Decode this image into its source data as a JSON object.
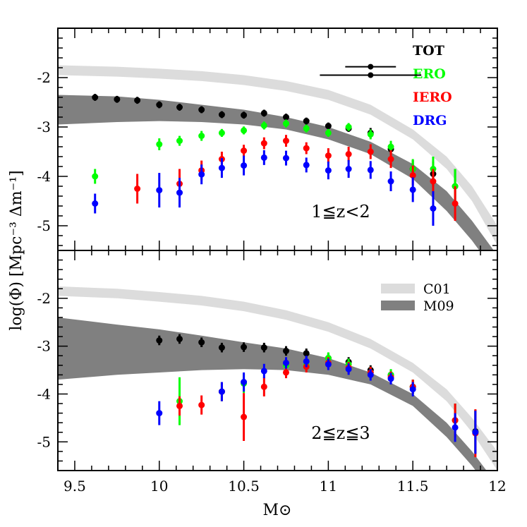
{
  "chart_data": [
    {
      "type": "scatter",
      "panel": "top",
      "xlabel": "M⊙",
      "ylabel": "log(Φ) [Mpc⁻³ Δm⁻¹]",
      "xlim": [
        9.4,
        12
      ],
      "ylim": [
        -5.5,
        -1
      ],
      "x_ticks": [
        "9.5",
        "10",
        "10.5",
        "11",
        "11.5",
        "12"
      ],
      "y_ticks": [
        "-2",
        "-3",
        "-4",
        "-5"
      ],
      "annotation": "1≦z<2",
      "legend": {
        "placement": "top-right",
        "entries": [
          {
            "label": "TOT",
            "color": "#000000"
          },
          {
            "label": "ERO",
            "color": "#00ff00"
          },
          {
            "label": "IERO",
            "color": "#ff0000"
          },
          {
            "label": "DRG",
            "color": "#0000ff"
          }
        ]
      },
      "error_bar_examples": [
        {
          "x": 11.25,
          "y": -1.78,
          "xerr": 0.15
        },
        {
          "x": 11.25,
          "y": -1.95,
          "xerr": 0.3
        }
      ],
      "bands": [
        {
          "name": "C01",
          "color": "#dcdcdc",
          "x": [
            9.4,
            9.75,
            10,
            10.25,
            10.5,
            10.75,
            11,
            11.25,
            11.5,
            11.7,
            11.85,
            12
          ],
          "upper": [
            -1.75,
            -1.78,
            -1.82,
            -1.87,
            -1.95,
            -2.07,
            -2.25,
            -2.55,
            -3.05,
            -3.6,
            -4.2,
            -5.0
          ],
          "lower": [
            -1.95,
            -1.98,
            -2.02,
            -2.07,
            -2.15,
            -2.27,
            -2.45,
            -2.75,
            -3.25,
            -3.85,
            -4.5,
            -5.4
          ]
        },
        {
          "name": "M09",
          "color": "#808080",
          "x": [
            9.4,
            9.75,
            10,
            10.25,
            10.5,
            10.75,
            11,
            11.25,
            11.5,
            11.7,
            11.85,
            12
          ],
          "upper": [
            -2.35,
            -2.38,
            -2.45,
            -2.55,
            -2.65,
            -2.8,
            -3.0,
            -3.3,
            -3.75,
            -4.3,
            -4.9,
            -5.6
          ],
          "lower": [
            -2.95,
            -2.9,
            -2.88,
            -2.9,
            -2.95,
            -3.05,
            -3.25,
            -3.55,
            -4.05,
            -4.7,
            -5.3,
            -6.0
          ]
        }
      ],
      "series": [
        {
          "name": "TOT",
          "color": "#000000",
          "points": [
            {
              "x": 9.62,
              "y": -2.4,
              "yerr": 0.07
            },
            {
              "x": 9.75,
              "y": -2.44,
              "yerr": 0.07
            },
            {
              "x": 9.87,
              "y": -2.46,
              "yerr": 0.07
            },
            {
              "x": 10.0,
              "y": -2.55,
              "yerr": 0.07
            },
            {
              "x": 10.12,
              "y": -2.6,
              "yerr": 0.07
            },
            {
              "x": 10.25,
              "y": -2.65,
              "yerr": 0.07
            },
            {
              "x": 10.37,
              "y": -2.75,
              "yerr": 0.07
            },
            {
              "x": 10.5,
              "y": -2.76,
              "yerr": 0.07
            },
            {
              "x": 10.62,
              "y": -2.72,
              "yerr": 0.07
            },
            {
              "x": 10.75,
              "y": -2.8,
              "yerr": 0.07
            },
            {
              "x": 10.87,
              "y": -2.88,
              "yerr": 0.07
            },
            {
              "x": 11.0,
              "y": -2.98,
              "yerr": 0.07
            },
            {
              "x": 11.12,
              "y": -3.03,
              "yerr": 0.07
            },
            {
              "x": 11.25,
              "y": -3.12,
              "yerr": 0.1
            },
            {
              "x": 11.37,
              "y": -3.45,
              "yerr": 0.12
            },
            {
              "x": 11.5,
              "y": -3.85,
              "yerr": 0.18
            },
            {
              "x": 11.62,
              "y": -3.95,
              "yerr": 0.25
            },
            {
              "x": 11.75,
              "y": -4.2,
              "yerr": 0.35
            }
          ]
        },
        {
          "name": "ERO",
          "color": "#00ff00",
          "points": [
            {
              "x": 9.62,
              "y": -4.0,
              "yerr": 0.15
            },
            {
              "x": 10.0,
              "y": -3.35,
              "yerr": 0.12
            },
            {
              "x": 10.12,
              "y": -3.28,
              "yerr": 0.1
            },
            {
              "x": 10.25,
              "y": -3.18,
              "yerr": 0.1
            },
            {
              "x": 10.37,
              "y": -3.12,
              "yerr": 0.08
            },
            {
              "x": 10.5,
              "y": -3.07,
              "yerr": 0.08
            },
            {
              "x": 10.62,
              "y": -2.97,
              "yerr": 0.08
            },
            {
              "x": 10.75,
              "y": -2.93,
              "yerr": 0.08
            },
            {
              "x": 10.87,
              "y": -3.03,
              "yerr": 0.08
            },
            {
              "x": 11.0,
              "y": -3.12,
              "yerr": 0.08
            },
            {
              "x": 11.12,
              "y": -3.0,
              "yerr": 0.08
            },
            {
              "x": 11.25,
              "y": -3.15,
              "yerr": 0.1
            },
            {
              "x": 11.37,
              "y": -3.4,
              "yerr": 0.12
            },
            {
              "x": 11.5,
              "y": -3.85,
              "yerr": 0.2
            },
            {
              "x": 11.62,
              "y": -3.85,
              "yerr": 0.25
            },
            {
              "x": 11.75,
              "y": -4.2,
              "yerr": 0.35
            }
          ]
        },
        {
          "name": "IERO",
          "color": "#ff0000",
          "points": [
            {
              "x": 9.87,
              "y": -4.25,
              "yerr": 0.3
            },
            {
              "x": 10.12,
              "y": -4.15,
              "yerr": 0.3
            },
            {
              "x": 10.25,
              "y": -3.88,
              "yerr": 0.2
            },
            {
              "x": 10.37,
              "y": -3.65,
              "yerr": 0.15
            },
            {
              "x": 10.5,
              "y": -3.48,
              "yerr": 0.12
            },
            {
              "x": 10.62,
              "y": -3.33,
              "yerr": 0.12
            },
            {
              "x": 10.75,
              "y": -3.28,
              "yerr": 0.12
            },
            {
              "x": 10.87,
              "y": -3.43,
              "yerr": 0.12
            },
            {
              "x": 11.0,
              "y": -3.58,
              "yerr": 0.15
            },
            {
              "x": 11.12,
              "y": -3.55,
              "yerr": 0.15
            },
            {
              "x": 11.25,
              "y": -3.5,
              "yerr": 0.15
            },
            {
              "x": 11.37,
              "y": -3.65,
              "yerr": 0.18
            },
            {
              "x": 11.5,
              "y": -3.98,
              "yerr": 0.2
            },
            {
              "x": 11.62,
              "y": -4.1,
              "yerr": 0.25
            },
            {
              "x": 11.75,
              "y": -4.55,
              "yerr": 0.35
            }
          ]
        },
        {
          "name": "DRG",
          "color": "#0000ff",
          "points": [
            {
              "x": 9.62,
              "y": -4.55,
              "yerr": 0.2
            },
            {
              "x": 10.0,
              "y": -4.28,
              "yerr": 0.35
            },
            {
              "x": 10.12,
              "y": -4.33,
              "yerr": 0.3
            },
            {
              "x": 10.25,
              "y": -3.96,
              "yerr": 0.2
            },
            {
              "x": 10.37,
              "y": -3.83,
              "yerr": 0.2
            },
            {
              "x": 10.5,
              "y": -3.78,
              "yerr": 0.2
            },
            {
              "x": 10.62,
              "y": -3.62,
              "yerr": 0.15
            },
            {
              "x": 10.75,
              "y": -3.63,
              "yerr": 0.15
            },
            {
              "x": 10.87,
              "y": -3.77,
              "yerr": 0.15
            },
            {
              "x": 11.0,
              "y": -3.88,
              "yerr": 0.18
            },
            {
              "x": 11.12,
              "y": -3.85,
              "yerr": 0.18
            },
            {
              "x": 11.25,
              "y": -3.87,
              "yerr": 0.18
            },
            {
              "x": 11.37,
              "y": -4.1,
              "yerr": 0.2
            },
            {
              "x": 11.5,
              "y": -4.27,
              "yerr": 0.25
            },
            {
              "x": 11.62,
              "y": -4.65,
              "yerr": 0.35
            }
          ]
        }
      ]
    },
    {
      "type": "scatter",
      "panel": "bottom",
      "xlabel": "M⊙",
      "ylabel": "log(Φ) [Mpc⁻³ Δm⁻¹]",
      "xlim": [
        9.4,
        12
      ],
      "ylim": [
        -5.6,
        -1
      ],
      "x_ticks": [
        "9.5",
        "10",
        "10.5",
        "11",
        "11.5",
        "12"
      ],
      "y_ticks": [
        "-2",
        "-3",
        "-4",
        "-5"
      ],
      "annotation": "2≦z≦3",
      "legend": {
        "placement": "top-right",
        "entries": [
          {
            "label": "C01",
            "color": "#dcdcdc"
          },
          {
            "label": "M09",
            "color": "#808080"
          }
        ]
      },
      "bands": [
        {
          "name": "C01",
          "color": "#dcdcdc",
          "x": [
            9.4,
            9.75,
            10,
            10.25,
            10.5,
            10.75,
            11,
            11.25,
            11.5,
            11.7,
            11.85,
            12
          ],
          "upper": [
            -1.75,
            -1.8,
            -1.87,
            -1.95,
            -2.07,
            -2.25,
            -2.5,
            -2.85,
            -3.35,
            -3.9,
            -4.5,
            -5.2
          ],
          "lower": [
            -1.95,
            -2.0,
            -2.07,
            -2.15,
            -2.27,
            -2.45,
            -2.7,
            -3.05,
            -3.55,
            -4.15,
            -4.8,
            -5.6
          ]
        },
        {
          "name": "M09",
          "color": "#808080",
          "x": [
            9.4,
            9.75,
            10,
            10.25,
            10.5,
            10.75,
            11,
            11.25,
            11.5,
            11.7,
            11.85,
            12
          ],
          "upper": [
            -2.4,
            -2.55,
            -2.65,
            -2.78,
            -2.92,
            -3.05,
            -3.25,
            -3.55,
            -4.0,
            -4.6,
            -5.2,
            -5.9
          ],
          "lower": [
            -3.7,
            -3.6,
            -3.55,
            -3.5,
            -3.48,
            -3.5,
            -3.6,
            -3.8,
            -4.25,
            -4.9,
            -5.5,
            -6.2
          ]
        }
      ],
      "series": [
        {
          "name": "TOT",
          "color": "#000000",
          "points": [
            {
              "x": 10.0,
              "y": -2.88,
              "yerr": 0.1
            },
            {
              "x": 10.12,
              "y": -2.85,
              "yerr": 0.1
            },
            {
              "x": 10.25,
              "y": -2.92,
              "yerr": 0.1
            },
            {
              "x": 10.37,
              "y": -3.03,
              "yerr": 0.1
            },
            {
              "x": 10.5,
              "y": -3.02,
              "yerr": 0.1
            },
            {
              "x": 10.62,
              "y": -3.03,
              "yerr": 0.1
            },
            {
              "x": 10.75,
              "y": -3.1,
              "yerr": 0.1
            },
            {
              "x": 10.87,
              "y": -3.15,
              "yerr": 0.1
            },
            {
              "x": 11.0,
              "y": -3.25,
              "yerr": 0.1
            },
            {
              "x": 11.12,
              "y": -3.33,
              "yerr": 0.1
            },
            {
              "x": 11.25,
              "y": -3.5,
              "yerr": 0.1
            },
            {
              "x": 11.37,
              "y": -3.6,
              "yerr": 0.1
            },
            {
              "x": 11.5,
              "y": -3.85,
              "yerr": 0.15
            },
            {
              "x": 11.75,
              "y": -4.55,
              "yerr": 0.35
            },
            {
              "x": 11.87,
              "y": -4.78,
              "yerr": 0.45
            }
          ]
        },
        {
          "name": "ERO",
          "color": "#00ff00",
          "points": [
            {
              "x": 10.12,
              "y": -4.15,
              "yerr": 0.5
            },
            {
              "x": 10.37,
              "y": -3.95,
              "yerr": 0.2
            },
            {
              "x": 10.5,
              "y": -3.78,
              "yerr": 0.2
            },
            {
              "x": 10.75,
              "y": -3.4,
              "yerr": 0.15
            },
            {
              "x": 10.87,
              "y": -3.4,
              "yerr": 0.12
            },
            {
              "x": 11.0,
              "y": -3.25,
              "yerr": 0.12
            },
            {
              "x": 11.12,
              "y": -3.38,
              "yerr": 0.12
            },
            {
              "x": 11.25,
              "y": -3.55,
              "yerr": 0.12
            },
            {
              "x": 11.37,
              "y": -3.6,
              "yerr": 0.12
            },
            {
              "x": 11.5,
              "y": -3.85,
              "yerr": 0.15
            },
            {
              "x": 11.75,
              "y": -4.55,
              "yerr": 0.35
            },
            {
              "x": 11.87,
              "y": -4.8,
              "yerr": 0.45
            }
          ]
        },
        {
          "name": "IERO",
          "color": "#ff0000",
          "points": [
            {
              "x": 10.12,
              "y": -4.25,
              "yerr": 0.2
            },
            {
              "x": 10.25,
              "y": -4.23,
              "yerr": 0.2
            },
            {
              "x": 10.37,
              "y": -3.95,
              "yerr": 0.2
            },
            {
              "x": 10.5,
              "y": -4.48,
              "yerr": 0.5
            },
            {
              "x": 10.62,
              "y": -3.85,
              "yerr": 0.2
            },
            {
              "x": 10.75,
              "y": -3.55,
              "yerr": 0.12
            },
            {
              "x": 10.87,
              "y": -3.43,
              "yerr": 0.12
            },
            {
              "x": 11.0,
              "y": -3.35,
              "yerr": 0.12
            },
            {
              "x": 11.12,
              "y": -3.45,
              "yerr": 0.12
            },
            {
              "x": 11.25,
              "y": -3.55,
              "yerr": 0.12
            },
            {
              "x": 11.37,
              "y": -3.65,
              "yerr": 0.12
            },
            {
              "x": 11.5,
              "y": -3.85,
              "yerr": 0.15
            },
            {
              "x": 11.75,
              "y": -4.55,
              "yerr": 0.35
            },
            {
              "x": 11.87,
              "y": -4.82,
              "yerr": 0.5
            }
          ]
        },
        {
          "name": "DRG",
          "color": "#0000ff",
          "points": [
            {
              "x": 10.0,
              "y": -4.4,
              "yerr": 0.25
            },
            {
              "x": 10.37,
              "y": -3.95,
              "yerr": 0.2
            },
            {
              "x": 10.5,
              "y": -3.75,
              "yerr": 0.2
            },
            {
              "x": 10.62,
              "y": -3.52,
              "yerr": 0.15
            },
            {
              "x": 10.75,
              "y": -3.35,
              "yerr": 0.12
            },
            {
              "x": 10.87,
              "y": -3.32,
              "yerr": 0.12
            },
            {
              "x": 11.0,
              "y": -3.38,
              "yerr": 0.12
            },
            {
              "x": 11.12,
              "y": -3.48,
              "yerr": 0.12
            },
            {
              "x": 11.25,
              "y": -3.6,
              "yerr": 0.12
            },
            {
              "x": 11.37,
              "y": -3.68,
              "yerr": 0.12
            },
            {
              "x": 11.5,
              "y": -3.9,
              "yerr": 0.15
            },
            {
              "x": 11.75,
              "y": -4.7,
              "yerr": 0.3
            },
            {
              "x": 11.87,
              "y": -4.8,
              "yerr": 0.45
            }
          ]
        }
      ]
    }
  ]
}
